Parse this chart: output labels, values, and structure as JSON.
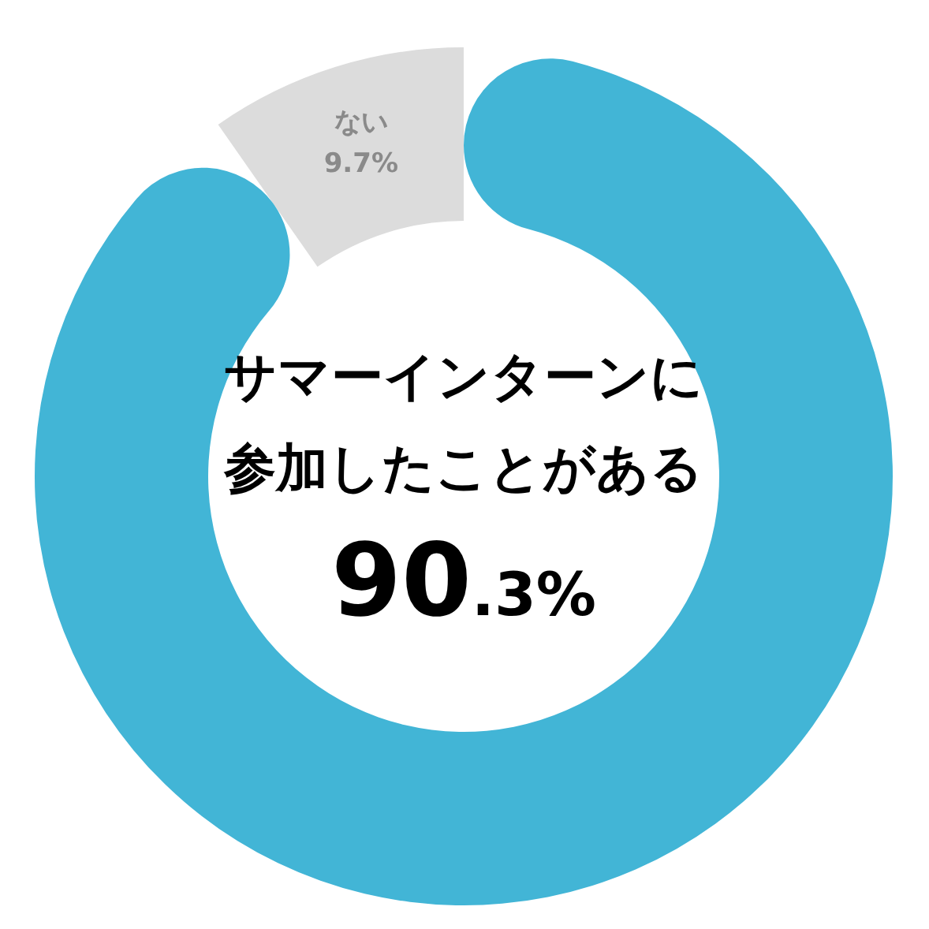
{
  "chart_data": {
    "type": "donut",
    "categories": [
      "サマーインターンに参加したことがある",
      "ない"
    ],
    "values": [
      90.3,
      9.7
    ],
    "colors": [
      "#42b5d6",
      "#dcdcdc"
    ],
    "value_labels": [
      "90.3%",
      "9.7%"
    ]
  }
}
